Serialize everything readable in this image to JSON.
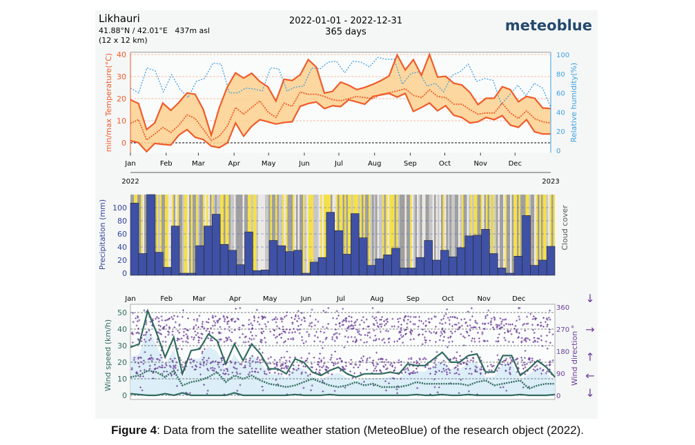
{
  "header": {
    "location": "Likhauri",
    "coords": "41.88°N / 42.01°E   437m asl",
    "resolution": "(12 x 12 km)",
    "date_range": "2022-01-01 - 2022-12-31",
    "days": "365 days",
    "brand": "meteoblue"
  },
  "caption": {
    "label": "Figure 4",
    "text": ": Data from the satellite weather station (MeteoBlue) of the research object (2022)."
  },
  "colors": {
    "temp": "#f05a28",
    "band": "#fbd08e",
    "humidity": "#3a9fe0",
    "precip": "#3f51a5",
    "wind": "#2f6b5e",
    "direction": "#6a3d9a",
    "cloud_yellow": "#f5e04a",
    "cloud_gray": "#a0a0a0"
  },
  "chart_data": [
    {
      "type": "line",
      "title": "",
      "ylabel": "min/max Temperature(°C)",
      "y2label": "Relative humidity(%)",
      "ylim": [
        -5,
        41
      ],
      "y2lim": [
        0,
        100
      ],
      "yticks": [
        0,
        10,
        20,
        30,
        40
      ],
      "y2ticks": [
        0,
        20,
        40,
        60,
        80,
        100
      ],
      "months": [
        "Jan",
        "Feb",
        "Mar",
        "Apr",
        "May",
        "Jun",
        "Jul",
        "Aug",
        "Sep",
        "Oct",
        "Nov",
        "Dec"
      ],
      "year_start": "2022",
      "year_end": "2023",
      "x_unit": "week",
      "series": [
        {
          "name": "max",
          "values": [
            19.5,
            17.8,
            6,
            9,
            18,
            14.7,
            18.3,
            22.6,
            22,
            15.2,
            3.5,
            16,
            25.4,
            31.7,
            29.3,
            31.5,
            27.8,
            25.4,
            18.9,
            28.8,
            28.2,
            30.8,
            37.7,
            34.3,
            22.5,
            23.3,
            27.5,
            26.1,
            24.1,
            25.1,
            26.5,
            28.2,
            30.3,
            39.8,
            33,
            37.7,
            30.6,
            40,
            29.8,
            30.1,
            27,
            26.2,
            22.8,
            17.3,
            20.2,
            20.2,
            25.4,
            24.1,
            18.6,
            21,
            20.2,
            15.8,
            15.5
          ]
        },
        {
          "name": "mean",
          "values": [
            8.8,
            10.5,
            1.3,
            4,
            7,
            4.7,
            8,
            12.7,
            11,
            6.2,
            1,
            3,
            7.7,
            16,
            13,
            16,
            19,
            14,
            11.5,
            18,
            16.5,
            23,
            22,
            22,
            21,
            19.5,
            19,
            20,
            21,
            20.5,
            20,
            22,
            22.7,
            23.5,
            24.5,
            21.5,
            20.5,
            24,
            21,
            20.5,
            17.5,
            17.5,
            15,
            13,
            13.5,
            13.5,
            18,
            13.5,
            11,
            14.5,
            11,
            9.5,
            9
          ]
        },
        {
          "name": "min",
          "values": [
            1,
            0,
            -4,
            -0.3,
            -0.7,
            -1,
            3.5,
            6,
            2.5,
            1.5,
            -1.5,
            -2.2,
            0,
            9,
            3,
            7.5,
            10.5,
            9.5,
            8.5,
            9.2,
            9.5,
            16.5,
            17.8,
            18.5,
            15.5,
            16.8,
            16.4,
            19.5,
            18.5,
            17.5,
            21,
            21.7,
            22.4,
            20.7,
            22.4,
            14.2,
            16,
            18,
            14.5,
            16.8,
            12.5,
            11.5,
            9,
            9.5,
            11.5,
            10.5,
            12.3,
            8,
            7,
            10.5,
            5,
            4,
            4
          ]
        },
        {
          "name": "humidity",
          "values": [
            65,
            60,
            86,
            83,
            61,
            79,
            64,
            55,
            72,
            75,
            91,
            90,
            60,
            60,
            65,
            64,
            62,
            86,
            85,
            62,
            66,
            67,
            86,
            85,
            92,
            93,
            81,
            93,
            92,
            87,
            97,
            95,
            95,
            69,
            80,
            82,
            67,
            70,
            61,
            78,
            82,
            90,
            72,
            75,
            73,
            48,
            58,
            68,
            57,
            70,
            65,
            45
          ]
        }
      ]
    },
    {
      "type": "bar",
      "ylabel": "Precipitation (mm)",
      "y2label": "Cloud cover",
      "ylim": [
        0,
        120
      ],
      "yticks": [
        0,
        20,
        40,
        60,
        80,
        100
      ],
      "values": [
        107,
        30,
        120,
        32,
        9,
        72,
        0,
        0,
        42,
        72,
        90,
        44,
        35,
        13,
        63,
        4,
        5,
        50,
        42,
        33,
        35,
        0,
        17,
        24,
        93,
        65,
        29,
        91,
        54,
        12,
        22,
        28,
        38,
        8,
        8,
        24,
        50,
        20,
        35,
        25,
        39,
        57,
        58,
        67,
        30,
        8,
        0,
        26,
        88,
        12,
        20,
        41
      ]
    },
    {
      "type": "line",
      "ylabel": "Wind speed (km/h)",
      "y2label": "Wind direction °",
      "ylim": [
        0,
        55
      ],
      "yticks": [
        0,
        10,
        20,
        30,
        40,
        50
      ],
      "y2lim": [
        0,
        360
      ],
      "y2ticks": [
        0,
        90,
        180,
        270,
        360
      ],
      "months": [
        "Jan",
        "Feb",
        "Mar",
        "Apr",
        "May",
        "Jun",
        "Jul",
        "Aug",
        "Sep",
        "Oct",
        "Nov",
        "Dec"
      ],
      "series": [
        {
          "name": "max",
          "values": [
            29,
            31,
            51,
            38,
            23,
            35,
            13,
            27,
            28,
            37,
            33,
            19,
            31,
            21,
            31,
            25,
            16,
            16,
            13,
            22,
            20,
            14,
            12,
            15,
            17,
            13,
            11,
            13,
            13,
            13,
            14,
            13,
            19,
            18,
            18,
            22,
            26,
            20,
            20,
            24,
            25,
            14,
            14,
            24,
            24,
            12,
            16,
            21,
            17,
            11
          ]
        },
        {
          "name": "mean",
          "values": [
            11,
            12,
            15,
            14,
            11,
            15,
            6,
            8,
            9,
            11,
            14,
            8,
            12,
            10,
            12,
            9,
            7,
            6,
            5,
            6,
            8,
            10,
            8,
            6,
            5,
            6,
            8,
            6,
            7,
            5,
            5,
            5,
            6,
            8,
            7,
            7,
            7,
            7,
            7,
            6,
            8,
            9,
            6,
            7,
            8,
            9,
            4,
            6,
            7,
            7
          ]
        },
        {
          "name": "min",
          "values": [
            1,
            0.5,
            0,
            0,
            1,
            0,
            1.5,
            0,
            0,
            0,
            0,
            0,
            1.5,
            0,
            0,
            0,
            0,
            0,
            0,
            0.5,
            0,
            0,
            0,
            0.5,
            0,
            0,
            0,
            0,
            0,
            0,
            0,
            0,
            0,
            0.5,
            0,
            0,
            0.5,
            0,
            0,
            0.5,
            0,
            0,
            0,
            0,
            0,
            0.5,
            0,
            0,
            0,
            0.5
          ]
        }
      ]
    }
  ]
}
